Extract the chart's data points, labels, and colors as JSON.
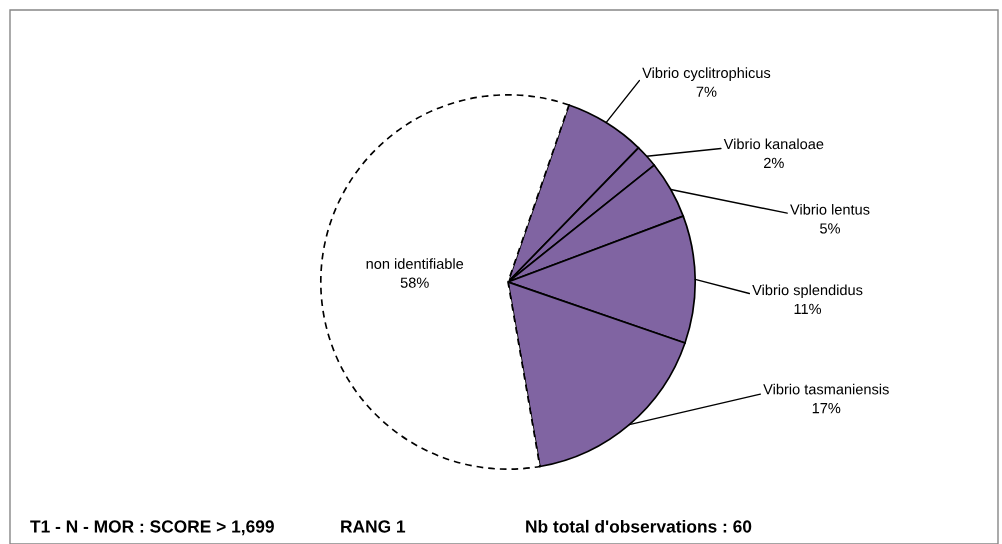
{
  "chart_data": {
    "type": "pie",
    "categories": [
      "Vibrio cyclitrophicus",
      "Vibrio kanaloae",
      "Vibrio lentus",
      "Vibrio splendidus",
      "Vibrio tasmaniensis",
      "non identifiable"
    ],
    "values": [
      7,
      2,
      5,
      11,
      17,
      58
    ],
    "colors": [
      "#8064a2",
      "#8064a2",
      "#8064a2",
      "#8064a2",
      "#8064a2",
      "#ffffff"
    ],
    "value_labels": [
      "7%",
      "2%",
      "5%",
      "11%",
      "17%",
      "58%"
    ],
    "annotations": [
      "T1 - N - MOR : SCORE > 1,699",
      "RANG 1",
      "Nb total d'observations : 60"
    ]
  }
}
